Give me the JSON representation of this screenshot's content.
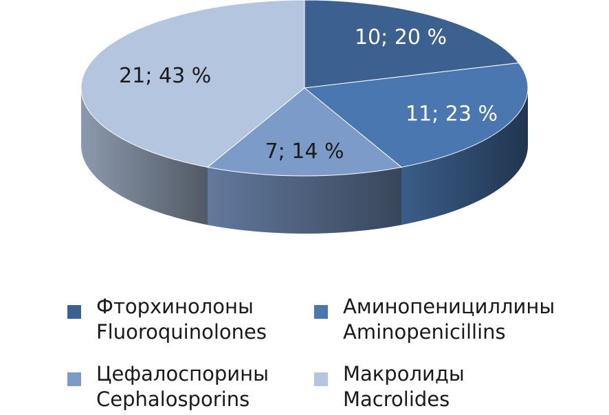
{
  "chart_data": {
    "type": "pie",
    "style": "3d",
    "title": "",
    "legend_position": "bottom",
    "series": [
      {
        "name_ru": "Фторхинолоны",
        "name_en": "Fluoroquinolones",
        "value": 10,
        "label": "10; 20 %",
        "color": "#3c6191"
      },
      {
        "name_ru": "Аминопенициллины",
        "name_en": "Aminopenicillins",
        "value": 11,
        "label": "11; 23 %",
        "color": "#4a77b0"
      },
      {
        "name_ru": "Цефалоспорины",
        "name_en": "Cephalosporins",
        "value": 7,
        "label": "7; 14 %",
        "color": "#7d9bc9"
      },
      {
        "name_ru": "Макролиды",
        "name_en": "Macrolides",
        "value": 21,
        "label": "21; 43 %",
        "color": "#b4c5df"
      }
    ]
  }
}
